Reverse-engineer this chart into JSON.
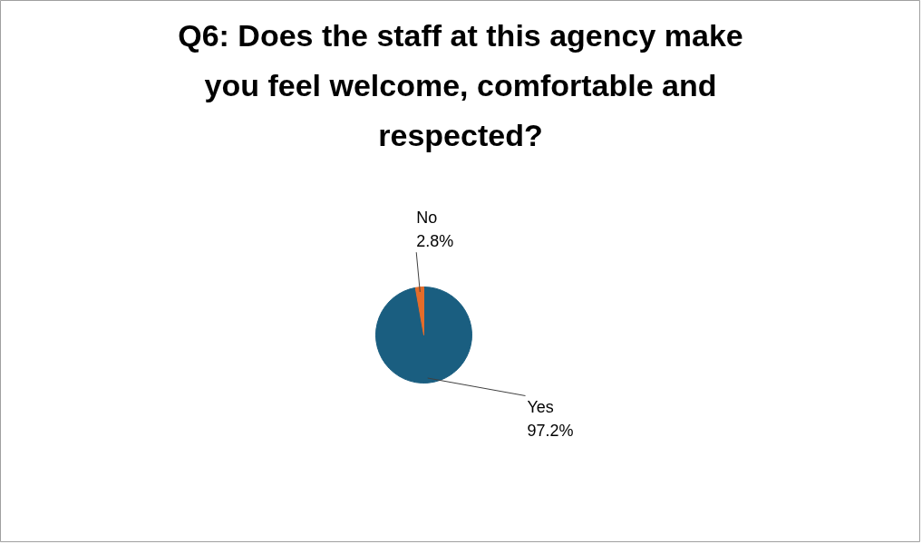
{
  "chart_data": {
    "type": "pie",
    "title": "Q6: Does the staff at this agency make you feel welcome, comfortable and respected?",
    "categories": [
      "Yes",
      "No"
    ],
    "values": [
      97.2,
      2.8
    ],
    "colors": [
      "#1a5e80",
      "#e46c2a"
    ],
    "value_labels": [
      "97.2%",
      "2.8%"
    ]
  }
}
